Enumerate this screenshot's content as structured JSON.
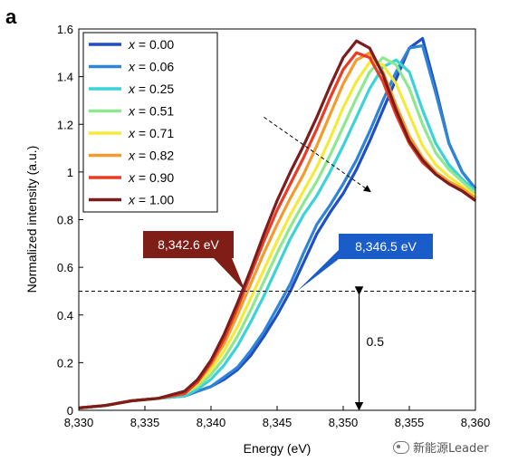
{
  "panel_label": "a",
  "watermark": "新能源Leader",
  "callouts": {
    "left": {
      "text": "8,342.6 eV",
      "color": "#7f1d17",
      "energy": 8342.6,
      "intensity": 0.5
    },
    "right": {
      "text": "8,346.5 eV",
      "color": "#1a5cc8",
      "energy": 8346.5,
      "intensity": 0.5
    }
  },
  "annotation_value": "0.5",
  "chart_data": {
    "type": "line",
    "xlabel": "Energy (eV)",
    "ylabel": "Normalized intensity (a.u.)",
    "xlim": [
      8330,
      8360
    ],
    "ylim": [
      0,
      1.6
    ],
    "x_ticks": [
      8330,
      8335,
      8340,
      8345,
      8350,
      8355,
      8360
    ],
    "x_tick_labels": [
      "8,330",
      "8,335",
      "8,340",
      "8,345",
      "8,350",
      "8,355",
      "8,360"
    ],
    "y_ticks": [
      0,
      0.2,
      0.4,
      0.6,
      0.8,
      1,
      1.2,
      1.4,
      1.6
    ],
    "y_tick_labels": [
      "0",
      "0.2",
      "0.4",
      "0.6",
      "0.8",
      "1",
      "1.2",
      "1.4",
      "1.6"
    ],
    "grid": false,
    "legend_position": "top-left",
    "reference_line": {
      "y": 0.5,
      "style": "dashed"
    },
    "trend_arrow": {
      "from": [
        8344,
        1.23
      ],
      "to": [
        8352,
        0.92
      ]
    },
    "series": [
      {
        "name": "x = 0.00",
        "var": "x",
        "value": "0.00",
        "color": "#1f4fc4",
        "x": [
          8330,
          8332,
          8334,
          8336,
          8338,
          8339,
          8340,
          8341,
          8342,
          8343,
          8344,
          8345,
          8346,
          8347,
          8348,
          8349,
          8350,
          8351,
          8352,
          8353,
          8354,
          8355,
          8356,
          8357,
          8358,
          8359,
          8360
        ],
        "y": [
          0.01,
          0.02,
          0.04,
          0.05,
          0.06,
          0.08,
          0.1,
          0.13,
          0.17,
          0.23,
          0.31,
          0.4,
          0.5,
          0.62,
          0.74,
          0.83,
          0.91,
          1.01,
          1.13,
          1.26,
          1.39,
          1.52,
          1.56,
          1.35,
          1.12,
          1.0,
          0.93
        ]
      },
      {
        "name": "x = 0.06",
        "var": "x",
        "value": "0.06",
        "color": "#2f84d6",
        "x": [
          8330,
          8332,
          8334,
          8336,
          8338,
          8339,
          8340,
          8341,
          8342,
          8343,
          8344,
          8345,
          8346,
          8347,
          8348,
          8349,
          8350,
          8351,
          8352,
          8353,
          8354,
          8355,
          8356,
          8357,
          8358,
          8359,
          8360
        ],
        "y": [
          0.01,
          0.02,
          0.04,
          0.05,
          0.06,
          0.08,
          0.1,
          0.14,
          0.18,
          0.25,
          0.33,
          0.43,
          0.53,
          0.66,
          0.78,
          0.86,
          0.95,
          1.05,
          1.17,
          1.3,
          1.42,
          1.52,
          1.53,
          1.33,
          1.12,
          1.0,
          0.93
        ]
      },
      {
        "name": "x = 0.25",
        "var": "x",
        "value": "0.25",
        "color": "#3cd2d9",
        "x": [
          8330,
          8332,
          8334,
          8336,
          8338,
          8339,
          8340,
          8341,
          8342,
          8343,
          8344,
          8345,
          8346,
          8347,
          8348,
          8349,
          8350,
          8351,
          8352,
          8353,
          8354,
          8355,
          8356,
          8357,
          8358,
          8359,
          8360
        ],
        "y": [
          0.01,
          0.02,
          0.04,
          0.05,
          0.06,
          0.09,
          0.13,
          0.19,
          0.27,
          0.37,
          0.48,
          0.6,
          0.72,
          0.82,
          0.9,
          1.0,
          1.11,
          1.23,
          1.35,
          1.44,
          1.47,
          1.42,
          1.26,
          1.12,
          1.03,
          0.97,
          0.92
        ]
      },
      {
        "name": "x = 0.51",
        "var": "x",
        "value": "0.51",
        "color": "#8fe88f",
        "x": [
          8330,
          8332,
          8334,
          8336,
          8338,
          8339,
          8340,
          8341,
          8342,
          8343,
          8344,
          8345,
          8346,
          8347,
          8348,
          8349,
          8350,
          8351,
          8352,
          8353,
          8354,
          8355,
          8356,
          8357,
          8358,
          8359,
          8360
        ],
        "y": [
          0.01,
          0.02,
          0.04,
          0.05,
          0.07,
          0.1,
          0.15,
          0.22,
          0.31,
          0.42,
          0.54,
          0.66,
          0.77,
          0.87,
          0.96,
          1.07,
          1.19,
          1.31,
          1.42,
          1.48,
          1.45,
          1.35,
          1.2,
          1.08,
          1.01,
          0.96,
          0.91
        ]
      },
      {
        "name": "x = 0.71",
        "var": "x",
        "value": "0.71",
        "color": "#f5ea3a",
        "x": [
          8330,
          8332,
          8334,
          8336,
          8338,
          8339,
          8340,
          8341,
          8342,
          8343,
          8344,
          8345,
          8346,
          8347,
          8348,
          8349,
          8350,
          8351,
          8352,
          8353,
          8354,
          8355,
          8356,
          8357,
          8358,
          8359,
          8360
        ],
        "y": [
          0.01,
          0.02,
          0.04,
          0.05,
          0.07,
          0.11,
          0.17,
          0.25,
          0.35,
          0.47,
          0.59,
          0.71,
          0.82,
          0.92,
          1.02,
          1.14,
          1.27,
          1.38,
          1.46,
          1.45,
          1.37,
          1.24,
          1.11,
          1.03,
          0.98,
          0.94,
          0.9
        ]
      },
      {
        "name": "x = 0.82",
        "var": "x",
        "value": "0.82",
        "color": "#f59a2c",
        "x": [
          8330,
          8332,
          8334,
          8336,
          8338,
          8339,
          8340,
          8341,
          8342,
          8343,
          8344,
          8345,
          8346,
          8347,
          8348,
          8349,
          8350,
          8351,
          8352,
          8353,
          8354,
          8355,
          8356,
          8357,
          8358,
          8359,
          8360
        ],
        "y": [
          0.01,
          0.02,
          0.04,
          0.05,
          0.07,
          0.12,
          0.19,
          0.28,
          0.4,
          0.53,
          0.66,
          0.78,
          0.89,
          0.99,
          1.11,
          1.24,
          1.37,
          1.47,
          1.5,
          1.42,
          1.28,
          1.15,
          1.06,
          1.0,
          0.96,
          0.93,
          0.89
        ]
      },
      {
        "name": "x = 0.90",
        "var": "x",
        "value": "0.90",
        "color": "#ea3b24",
        "x": [
          8330,
          8332,
          8334,
          8336,
          8338,
          8339,
          8340,
          8341,
          8342,
          8343,
          8344,
          8345,
          8346,
          8347,
          8348,
          8349,
          8350,
          8351,
          8352,
          8353,
          8354,
          8355,
          8356,
          8357,
          8358,
          8359,
          8360
        ],
        "y": [
          0.01,
          0.02,
          0.04,
          0.05,
          0.07,
          0.12,
          0.2,
          0.3,
          0.43,
          0.57,
          0.71,
          0.84,
          0.95,
          1.06,
          1.18,
          1.31,
          1.43,
          1.5,
          1.48,
          1.38,
          1.24,
          1.12,
          1.04,
          0.99,
          0.95,
          0.92,
          0.88
        ]
      },
      {
        "name": "x = 1.00",
        "var": "x",
        "value": "1.00",
        "color": "#7a1d1d",
        "x": [
          8330,
          8332,
          8334,
          8336,
          8338,
          8339,
          8340,
          8341,
          8342,
          8343,
          8344,
          8345,
          8346,
          8347,
          8348,
          8349,
          8350,
          8351,
          8352,
          8353,
          8354,
          8355,
          8356,
          8357,
          8358,
          8359,
          8360
        ],
        "y": [
          0.01,
          0.02,
          0.04,
          0.05,
          0.08,
          0.13,
          0.21,
          0.32,
          0.45,
          0.59,
          0.74,
          0.88,
          1.0,
          1.11,
          1.23,
          1.36,
          1.48,
          1.55,
          1.52,
          1.41,
          1.26,
          1.13,
          1.05,
          0.99,
          0.95,
          0.92,
          0.88
        ]
      }
    ]
  }
}
